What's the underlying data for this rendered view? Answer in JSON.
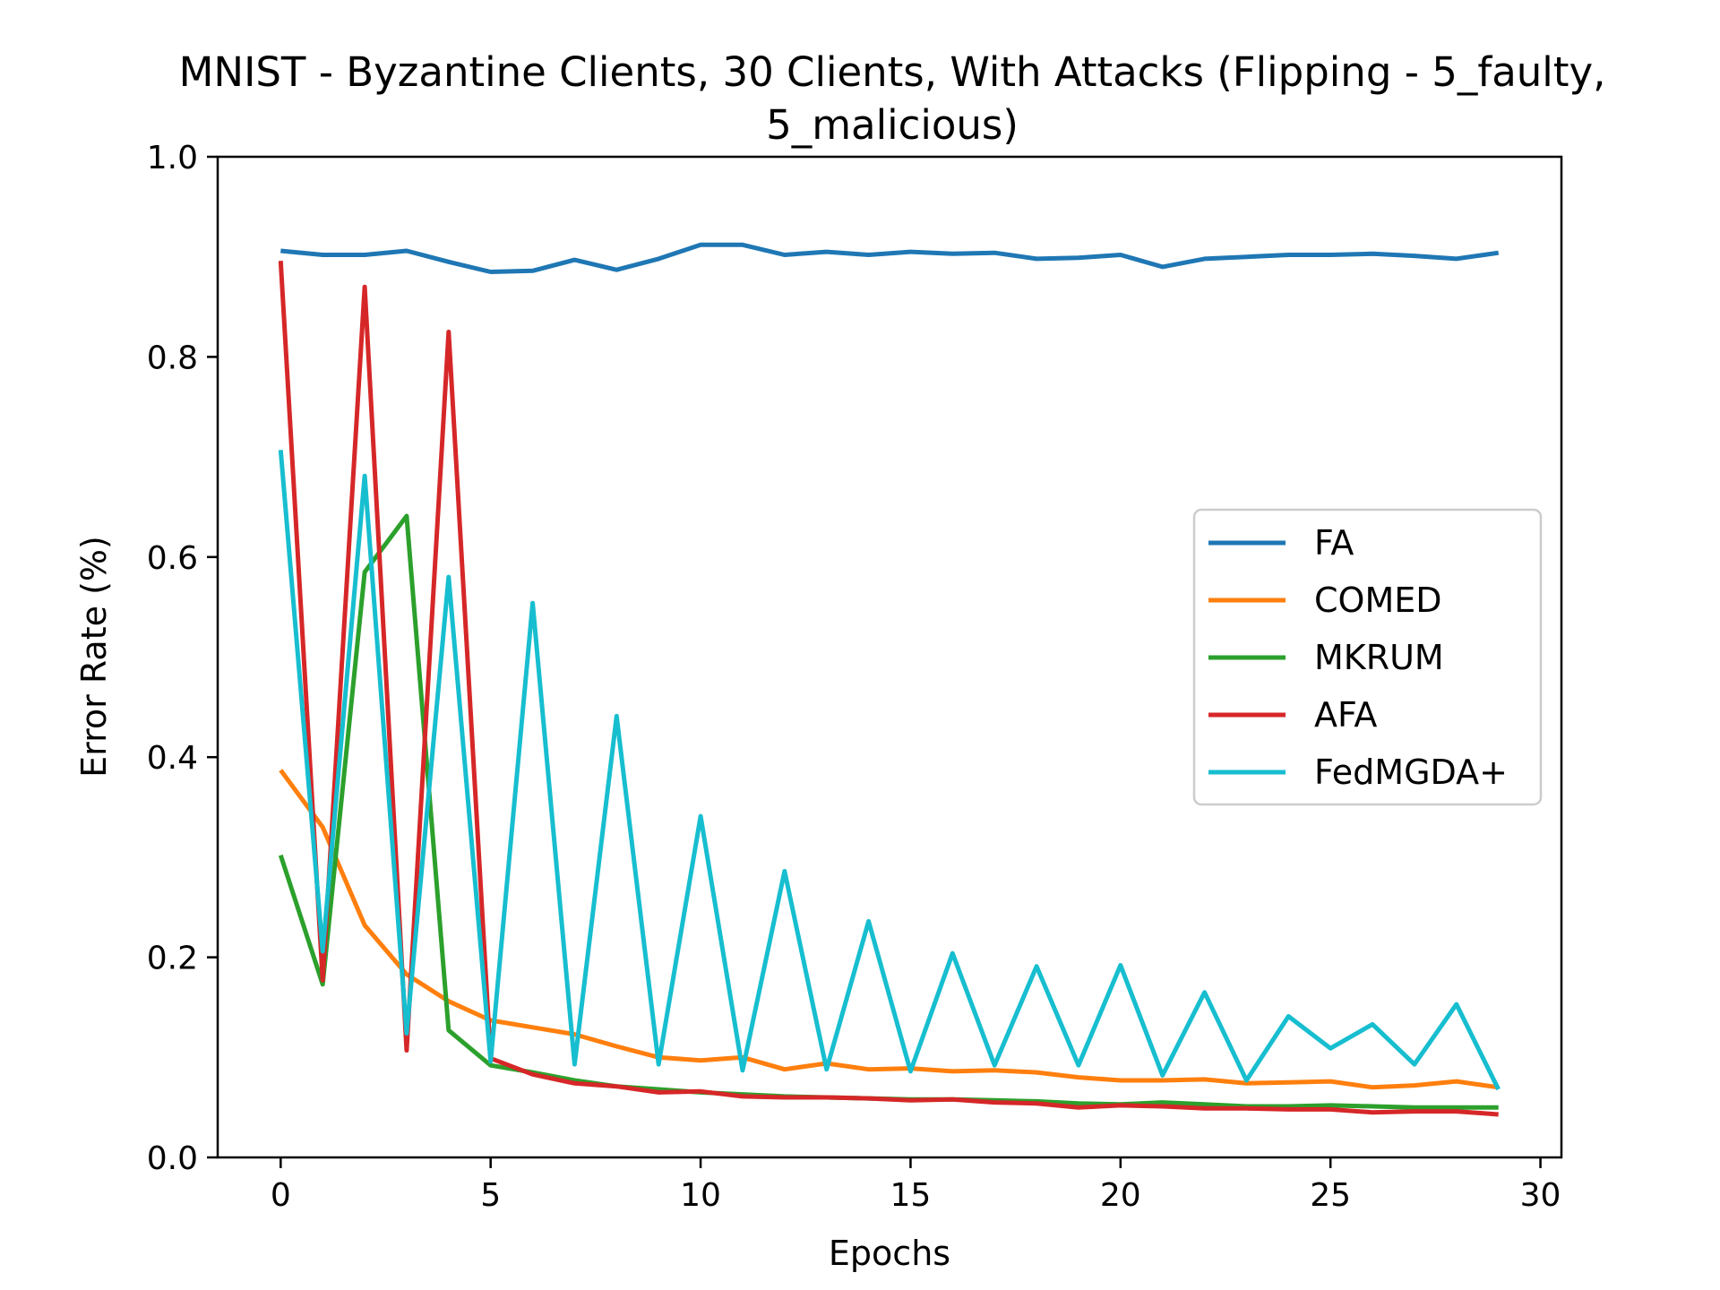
{
  "chart_data": {
    "type": "line",
    "title_line1": "MNIST - Byzantine Clients, 30 Clients, With Attacks (Flipping - 5_faulty,",
    "title_line2": "5_malicious)",
    "xlabel": "Epochs",
    "ylabel": "Error Rate (%)",
    "xlim": [
      -1.5,
      30.5
    ],
    "ylim": [
      0.0,
      1.0
    ],
    "xticks": [
      0,
      5,
      10,
      15,
      20,
      25,
      30
    ],
    "xtick_labels": [
      "0",
      "5",
      "10",
      "15",
      "20",
      "25",
      "30"
    ],
    "yticks": [
      0.0,
      0.2,
      0.4,
      0.6,
      0.8,
      1.0
    ],
    "ytick_labels": [
      "0.0",
      "0.2",
      "0.4",
      "0.6",
      "0.8",
      "1.0"
    ],
    "grid": false,
    "legend_position": "center-right",
    "x": [
      0,
      1,
      2,
      3,
      4,
      5,
      6,
      7,
      8,
      9,
      10,
      11,
      12,
      13,
      14,
      15,
      16,
      17,
      18,
      19,
      20,
      21,
      22,
      23,
      24,
      25,
      26,
      27,
      28,
      29
    ],
    "series": [
      {
        "name": "FA",
        "color": "#1f77b4",
        "values": [
          0.906,
          0.902,
          0.902,
          0.906,
          0.895,
          0.885,
          0.886,
          0.897,
          0.887,
          0.898,
          0.912,
          0.912,
          0.902,
          0.905,
          0.902,
          0.905,
          0.903,
          0.904,
          0.898,
          0.899,
          0.902,
          0.89,
          0.898,
          0.9,
          0.902,
          0.902,
          0.903,
          0.901,
          0.898,
          0.904
        ]
      },
      {
        "name": "COMED",
        "color": "#ff7f0e",
        "values": [
          0.387,
          0.33,
          0.232,
          0.183,
          0.156,
          0.137,
          0.13,
          0.123,
          0.111,
          0.1,
          0.097,
          0.1,
          0.088,
          0.094,
          0.088,
          0.089,
          0.086,
          0.087,
          0.085,
          0.08,
          0.077,
          0.077,
          0.078,
          0.074,
          0.075,
          0.076,
          0.07,
          0.072,
          0.076,
          0.07
        ]
      },
      {
        "name": "MKRUM",
        "color": "#2ca02c",
        "values": [
          0.302,
          0.173,
          0.585,
          0.641,
          0.127,
          0.092,
          0.085,
          0.077,
          0.071,
          0.068,
          0.065,
          0.063,
          0.061,
          0.06,
          0.059,
          0.058,
          0.058,
          0.057,
          0.056,
          0.054,
          0.053,
          0.055,
          0.053,
          0.051,
          0.051,
          0.052,
          0.051,
          0.05,
          0.05,
          0.05
        ]
      },
      {
        "name": "AFA",
        "color": "#d62728",
        "values": [
          0.896,
          0.177,
          0.87,
          0.107,
          0.825,
          0.099,
          0.083,
          0.074,
          0.071,
          0.065,
          0.066,
          0.061,
          0.06,
          0.06,
          0.059,
          0.057,
          0.058,
          0.055,
          0.054,
          0.05,
          0.052,
          0.051,
          0.049,
          0.049,
          0.048,
          0.048,
          0.045,
          0.046,
          0.046,
          0.043
        ]
      },
      {
        "name": "FedMGDA+",
        "color": "#17becf",
        "values": [
          0.707,
          0.206,
          0.681,
          0.124,
          0.58,
          0.096,
          0.554,
          0.093,
          0.441,
          0.093,
          0.341,
          0.087,
          0.286,
          0.088,
          0.236,
          0.086,
          0.204,
          0.092,
          0.191,
          0.092,
          0.192,
          0.082,
          0.165,
          0.077,
          0.141,
          0.109,
          0.133,
          0.093,
          0.153,
          0.068
        ]
      }
    ]
  }
}
